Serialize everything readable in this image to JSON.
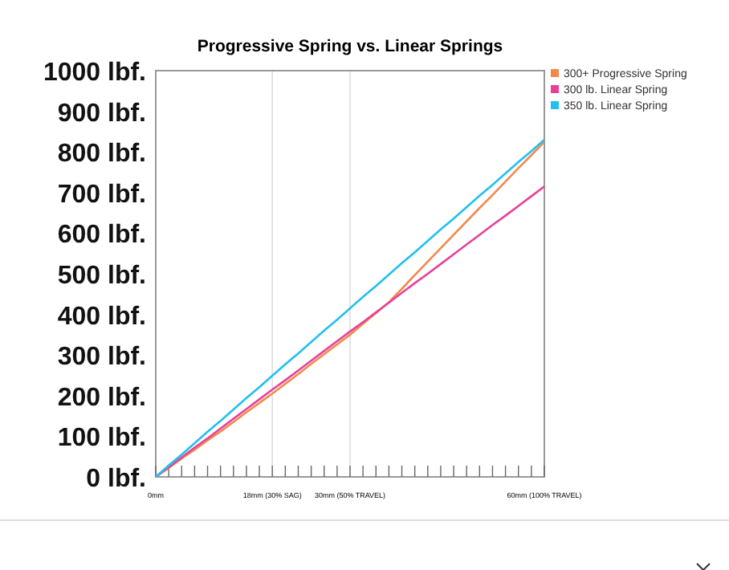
{
  "chart_data": {
    "type": "line",
    "title": "Progressive Spring vs. Linear Springs",
    "categories": [
      "0mm",
      null,
      null,
      null,
      null,
      null,
      null,
      null,
      null,
      "18mm (30% SAG)",
      null,
      null,
      null,
      null,
      null,
      "30mm (50% TRAVEL)",
      null,
      null,
      null,
      null,
      null,
      null,
      null,
      null,
      null,
      null,
      null,
      null,
      null,
      null,
      "60mm (100% TRAVEL)"
    ],
    "ylim": [
      0,
      1000
    ],
    "yticks": [
      {
        "value": 0,
        "label": "0 lbf."
      },
      {
        "value": 100,
        "label": "100 lbf."
      },
      {
        "value": 200,
        "label": "200 lbf."
      },
      {
        "value": 300,
        "label": "300 lbf."
      },
      {
        "value": 400,
        "label": "400 lbf."
      },
      {
        "value": 500,
        "label": "500 lbf."
      },
      {
        "value": 600,
        "label": "600 lbf."
      },
      {
        "value": 700,
        "label": "700 lbf."
      },
      {
        "value": 800,
        "label": "800 lbf."
      },
      {
        "value": 900,
        "label": "900 lbf."
      },
      {
        "value": 1000,
        "label": "1000 lbf."
      }
    ],
    "grid": "x",
    "legend": "top right",
    "marker": "none",
    "line_style": "solid",
    "series": [
      {
        "name": "300+ Progressive Spring",
        "color": "#f08a4b",
        "values": [
          0,
          22,
          45,
          67,
          90,
          112,
          135,
          159,
          182,
          205,
          229,
          253,
          278,
          302,
          326,
          350,
          377,
          403,
          430,
          463,
          497,
          530,
          563,
          596,
          629,
          662,
          694,
          727,
          760,
          792,
          825
        ]
      },
      {
        "name": "300 lb. Linear Spring",
        "color": "#e8409a",
        "values": [
          0,
          24,
          48,
          72,
          95,
          119,
          143,
          167,
          191,
          215,
          238,
          262,
          286,
          310,
          334,
          358,
          381,
          405,
          429,
          453,
          477,
          500,
          524,
          548,
          572,
          596,
          620,
          643,
          667,
          691,
          715
        ]
      },
      {
        "name": "350 lb. Linear Spring",
        "color": "#22c0f0",
        "values": [
          0,
          28,
          55,
          83,
          111,
          138,
          166,
          194,
          221,
          249,
          277,
          304,
          332,
          360,
          387,
          415,
          443,
          470,
          498,
          526,
          553,
          581,
          609,
          636,
          664,
          692,
          719,
          747,
          775,
          802,
          830
        ]
      }
    ]
  }
}
